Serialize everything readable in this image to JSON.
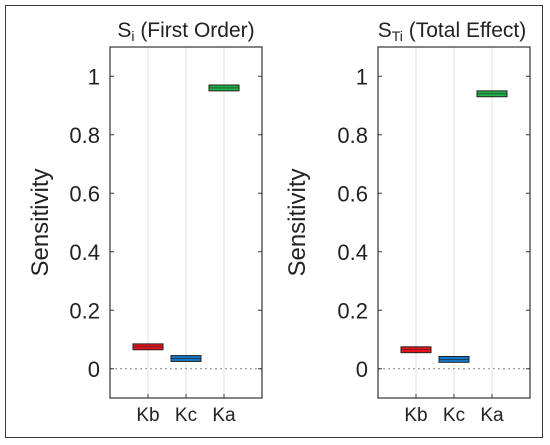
{
  "chart_data": [
    {
      "type": "box",
      "title": "Si (First Order)",
      "title_main": "S",
      "title_sub": "i",
      "title_rest": " (First Order)",
      "ylabel": "Sensitivity",
      "ylim": [
        -0.1,
        1.1
      ],
      "yticks": [
        "0",
        "0.2",
        "0.4",
        "0.6",
        "0.8",
        "1"
      ],
      "ytick_values": [
        0,
        0.2,
        0.4,
        0.6,
        0.8,
        1
      ],
      "categories": [
        "Kb",
        "Kc",
        "Ka"
      ],
      "values": [
        0.075,
        0.035,
        0.96
      ],
      "box_low": [
        0.065,
        0.025,
        0.95
      ],
      "box_high": [
        0.085,
        0.045,
        0.97
      ],
      "colors": [
        "#e8141c",
        "#1478c8",
        "#1fb34a"
      ],
      "grid": "vertical",
      "zero_line": true
    },
    {
      "type": "box",
      "title": "STi (Total Effect)",
      "title_main": "S",
      "title_sub": "Ti",
      "title_rest": " (Total Effect)",
      "ylabel": "Sensitivity",
      "ylim": [
        -0.1,
        1.1
      ],
      "yticks": [
        "0",
        "0.2",
        "0.4",
        "0.6",
        "0.8",
        "1"
      ],
      "ytick_values": [
        0,
        0.2,
        0.4,
        0.6,
        0.8,
        1
      ],
      "categories": [
        "Kb",
        "Kc",
        "Ka"
      ],
      "values": [
        0.065,
        0.032,
        0.94
      ],
      "box_low": [
        0.055,
        0.022,
        0.93
      ],
      "box_high": [
        0.075,
        0.042,
        0.95
      ],
      "colors": [
        "#e8141c",
        "#1478c8",
        "#1fb34a"
      ],
      "grid": "vertical",
      "zero_line": true
    }
  ]
}
